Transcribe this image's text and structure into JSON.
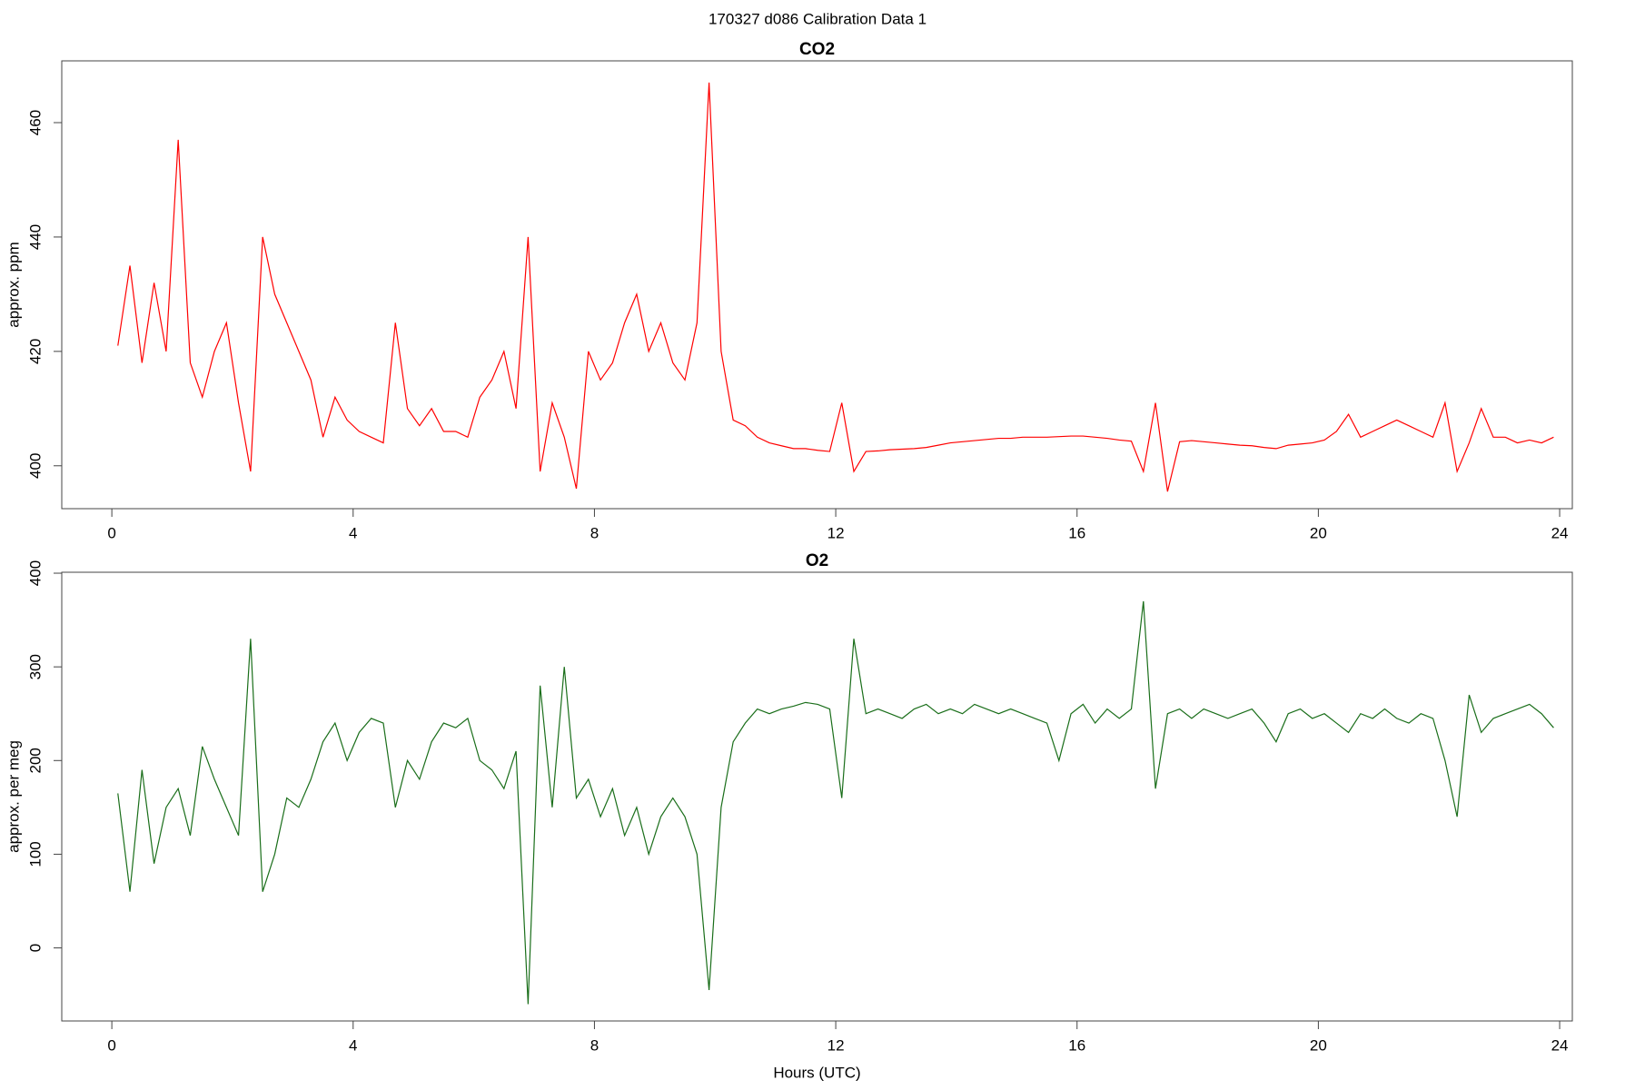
{
  "title": "170327   d086   Calibration Data 1",
  "chart_data": [
    {
      "type": "line",
      "title": "CO2",
      "y_label": "approx. ppm",
      "color": "#ff0000",
      "xlim": [
        -0.83,
        24.21
      ],
      "xticks": [
        0,
        4,
        8,
        12,
        16,
        20,
        24
      ],
      "ylim": [
        392.5,
        470.8
      ],
      "yticks": [
        400,
        420,
        440,
        460
      ],
      "x": [
        0.1,
        0.3,
        0.5,
        0.7,
        0.9,
        1.1,
        1.3,
        1.5,
        1.7,
        1.9,
        2.1,
        2.3,
        2.5,
        2.7,
        2.9,
        3.1,
        3.3,
        3.5,
        3.7,
        3.9,
        4.1,
        4.3,
        4.5,
        4.7,
        4.9,
        5.1,
        5.3,
        5.5,
        5.7,
        5.9,
        6.1,
        6.3,
        6.5,
        6.7,
        6.9,
        7.1,
        7.3,
        7.5,
        7.7,
        7.9,
        8.1,
        8.3,
        8.5,
        8.7,
        8.9,
        9.1,
        9.3,
        9.5,
        9.7,
        9.9,
        10.1,
        10.3,
        10.5,
        10.7,
        10.9,
        11.1,
        11.3,
        11.5,
        11.7,
        11.9,
        12.1,
        12.3,
        12.5,
        12.7,
        12.9,
        13.1,
        13.3,
        13.5,
        13.7,
        13.9,
        14.1,
        14.3,
        14.5,
        14.7,
        14.9,
        15.1,
        15.3,
        15.5,
        15.7,
        15.9,
        16.1,
        16.3,
        16.5,
        16.7,
        16.9,
        17.1,
        17.3,
        17.5,
        17.7,
        17.9,
        18.1,
        18.3,
        18.5,
        18.7,
        18.9,
        19.1,
        19.3,
        19.5,
        19.7,
        19.9,
        20.1,
        20.3,
        20.5,
        20.7,
        20.9,
        21.1,
        21.3,
        21.5,
        21.7,
        21.9,
        22.1,
        22.3,
        22.5,
        22.7,
        22.9,
        23.1,
        23.3,
        23.5,
        23.7,
        23.9
      ],
      "values": [
        421,
        435,
        418,
        432,
        420,
        457,
        418,
        412,
        420,
        425,
        411,
        399,
        440,
        430,
        425,
        420,
        415,
        405,
        412,
        408,
        406,
        405,
        404,
        425,
        410,
        407,
        410,
        406,
        406,
        405,
        412,
        415,
        420,
        410,
        440,
        399,
        411,
        405,
        396,
        420,
        415,
        418,
        425,
        430,
        420,
        425,
        418,
        415,
        425,
        467,
        420,
        408,
        407,
        405,
        404,
        403.5,
        403,
        403,
        402.7,
        402.5,
        411,
        399,
        402.5,
        402.6,
        402.8,
        402.9,
        403,
        403.2,
        403.6,
        404,
        404.2,
        404.4,
        404.6,
        404.8,
        404.8,
        405,
        405,
        405,
        405.1,
        405.2,
        405.2,
        405,
        404.8,
        404.5,
        404.3,
        399,
        411,
        395.5,
        404.2,
        404.4,
        404.2,
        404,
        403.8,
        403.6,
        403.5,
        403.2,
        403,
        403.6,
        403.8,
        404,
        404.5,
        406,
        409,
        405,
        406,
        407,
        408,
        407,
        406,
        405,
        411,
        399,
        404,
        410,
        405,
        405,
        404,
        404.5,
        404,
        405
      ]
    },
    {
      "type": "line",
      "title": "O2",
      "y_label": "approx. per meg",
      "x_label": "Hours (UTC)",
      "color": "#1a6e1a",
      "xlim": [
        -0.83,
        24.21
      ],
      "xticks": [
        0,
        4,
        8,
        12,
        16,
        20,
        24
      ],
      "ylim": [
        -78,
        401
      ],
      "yticks": [
        0,
        100,
        200,
        300,
        400
      ],
      "x": [
        0.1,
        0.3,
        0.5,
        0.7,
        0.9,
        1.1,
        1.3,
        1.5,
        1.7,
        1.9,
        2.1,
        2.3,
        2.5,
        2.7,
        2.9,
        3.1,
        3.3,
        3.5,
        3.7,
        3.9,
        4.1,
        4.3,
        4.5,
        4.7,
        4.9,
        5.1,
        5.3,
        5.5,
        5.7,
        5.9,
        6.1,
        6.3,
        6.5,
        6.7,
        6.9,
        7.1,
        7.3,
        7.5,
        7.7,
        7.9,
        8.1,
        8.3,
        8.5,
        8.7,
        8.9,
        9.1,
        9.3,
        9.5,
        9.7,
        9.9,
        10.1,
        10.3,
        10.5,
        10.7,
        10.9,
        11.1,
        11.3,
        11.5,
        11.7,
        11.9,
        12.1,
        12.3,
        12.5,
        12.7,
        12.9,
        13.1,
        13.3,
        13.5,
        13.7,
        13.9,
        14.1,
        14.3,
        14.5,
        14.7,
        14.9,
        15.1,
        15.3,
        15.5,
        15.7,
        15.9,
        16.1,
        16.3,
        16.5,
        16.7,
        16.9,
        17.1,
        17.3,
        17.5,
        17.7,
        17.9,
        18.1,
        18.3,
        18.5,
        18.7,
        18.9,
        19.1,
        19.3,
        19.5,
        19.7,
        19.9,
        20.1,
        20.3,
        20.5,
        20.7,
        20.9,
        21.1,
        21.3,
        21.5,
        21.7,
        21.9,
        22.1,
        22.3,
        22.5,
        22.7,
        22.9,
        23.1,
        23.3,
        23.5,
        23.7,
        23.9
      ],
      "values": [
        165,
        60,
        190,
        90,
        150,
        170,
        120,
        215,
        180,
        150,
        120,
        330,
        60,
        100,
        160,
        150,
        180,
        220,
        240,
        200,
        230,
        245,
        240,
        150,
        200,
        180,
        220,
        240,
        235,
        245,
        200,
        190,
        170,
        210,
        -60,
        280,
        150,
        300,
        160,
        180,
        140,
        170,
        120,
        150,
        100,
        140,
        160,
        140,
        100,
        -45,
        150,
        220,
        240,
        255,
        250,
        255,
        258,
        262,
        260,
        255,
        160,
        330,
        250,
        255,
        250,
        245,
        255,
        260,
        250,
        255,
        250,
        260,
        255,
        250,
        255,
        250,
        245,
        240,
        200,
        250,
        260,
        240,
        255,
        245,
        255,
        370,
        170,
        250,
        255,
        245,
        255,
        250,
        245,
        250,
        255,
        240,
        220,
        250,
        255,
        245,
        250,
        240,
        230,
        250,
        245,
        255,
        245,
        240,
        250,
        245,
        200,
        140,
        270,
        230,
        245,
        250,
        255,
        260,
        250,
        235
      ]
    }
  ]
}
